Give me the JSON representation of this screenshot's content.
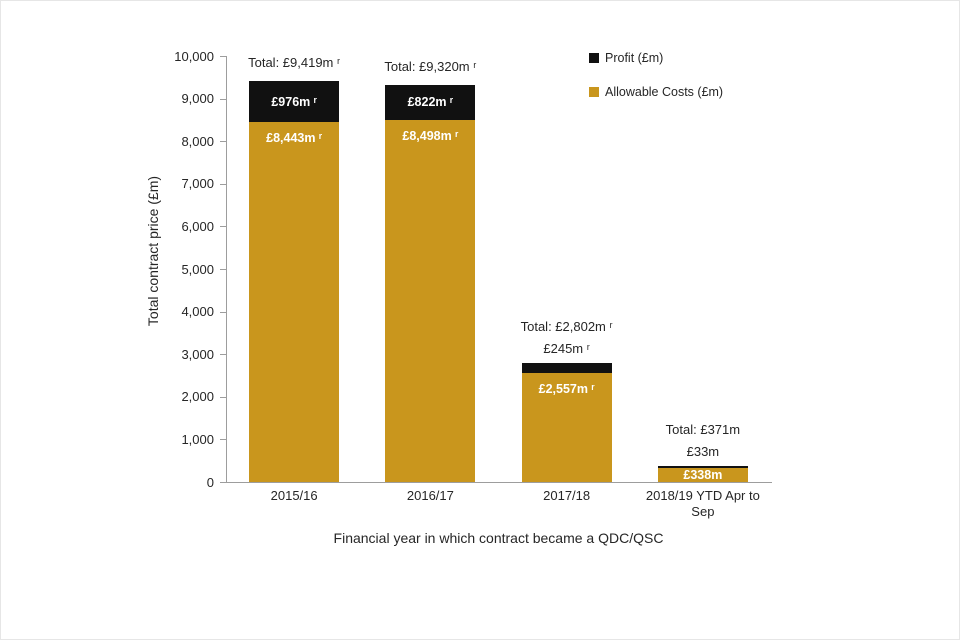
{
  "chart_data": {
    "type": "bar",
    "stacked": true,
    "title": "",
    "xlabel": "Financial year in which contract became a QDC/QSC",
    "ylabel": "Total contract price (£m)",
    "ylim": [
      0,
      10000
    ],
    "ytick_step": 1000,
    "yticks": [
      "0",
      "1,000",
      "2,000",
      "3,000",
      "4,000",
      "5,000",
      "6,000",
      "7,000",
      "8,000",
      "9,000",
      "10,000"
    ],
    "grid": false,
    "legend_position": "top-right",
    "categories": [
      "2015/16",
      "2016/17",
      "2017/18",
      "2018/19 YTD Apr to Sep"
    ],
    "series": [
      {
        "name": "Profit (£m)",
        "color": "#111111",
        "values": [
          976,
          822,
          245,
          33
        ]
      },
      {
        "name": "Allowable Costs (£m)",
        "color": "#C9961D",
        "values": [
          8443,
          8498,
          2557,
          338
        ]
      }
    ],
    "totals": [
      9419,
      9320,
      2802,
      371
    ],
    "bars": [
      {
        "category": "2015/16",
        "total": 9419,
        "profit": 976,
        "costs": 8443,
        "total_label": "Total: £9,419m ʳ",
        "profit_label": "£976m ʳ",
        "profit_label_pos": "inside",
        "costs_label": "£8,443m ʳ",
        "costs_label_pos": "top"
      },
      {
        "category": "2016/17",
        "total": 9320,
        "profit": 822,
        "costs": 8498,
        "total_label": "Total: £9,320m ʳ",
        "profit_label": "£822m ʳ",
        "profit_label_pos": "inside",
        "costs_label": "£8,498m ʳ",
        "costs_label_pos": "top"
      },
      {
        "category": "2017/18",
        "total": 2802,
        "profit": 245,
        "costs": 2557,
        "total_label": "Total: £2,802m ʳ",
        "profit_label": "£245m ʳ",
        "profit_label_pos": "above",
        "costs_label": "£2,557m ʳ",
        "costs_label_pos": "top"
      },
      {
        "category": "2018/19 YTD Apr to Sep",
        "total": 371,
        "profit": 33,
        "costs": 338,
        "total_label": "Total: £371m",
        "profit_label": "£33m",
        "profit_label_pos": "above",
        "costs_label": "£338m",
        "costs_label_pos": "center"
      }
    ]
  }
}
